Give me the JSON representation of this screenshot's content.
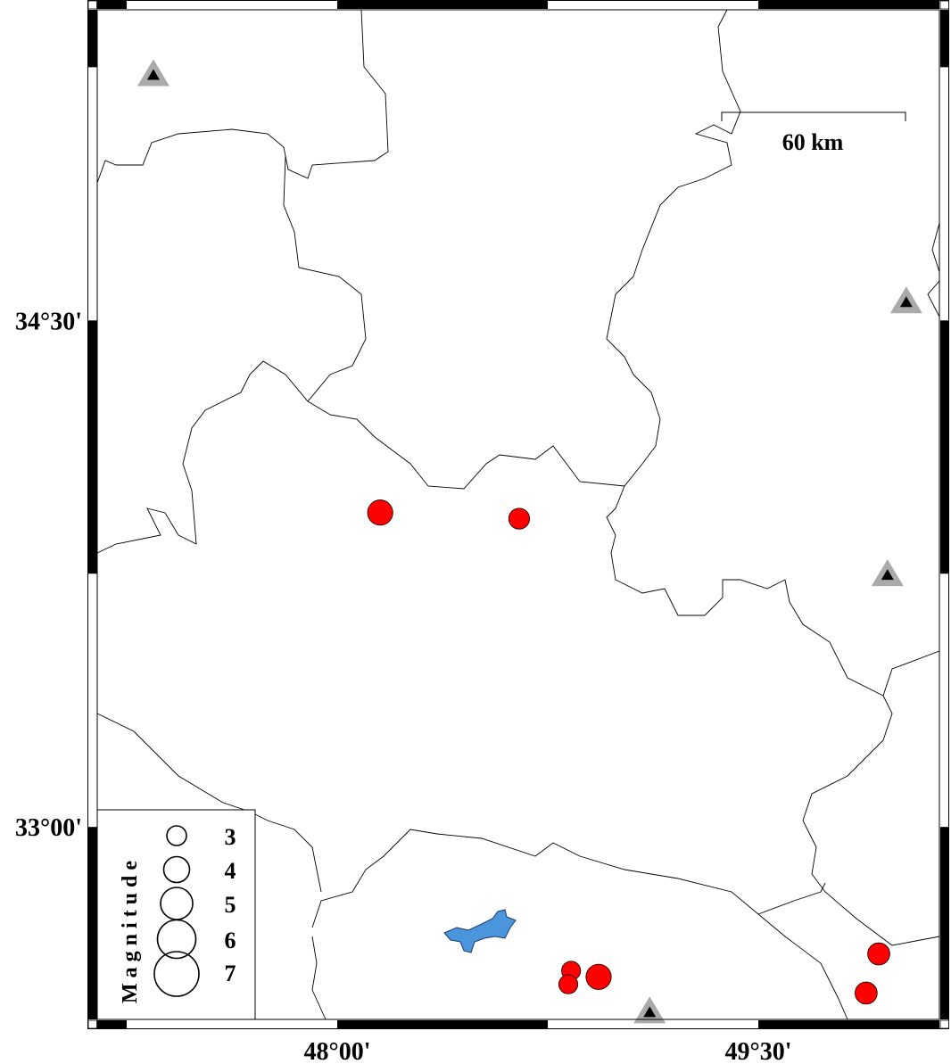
{
  "map": {
    "extent": {
      "lon": [
        47.145,
        50.145
      ],
      "lat": [
        32.43,
        35.42
      ]
    },
    "lon_ticks": [
      {
        "value": 48.0,
        "label": "48°00'"
      },
      {
        "value": 49.5,
        "label": "49°30'"
      }
    ],
    "lat_ticks": [
      {
        "value": 34.5,
        "label": "34°30'"
      },
      {
        "value": 33.0,
        "label": "33°00'"
      }
    ],
    "frame_interval_deg": 0.75,
    "scale_bar": {
      "label": "60 km",
      "length_km": 60
    },
    "colors": {
      "event": "#ff0000",
      "station_outer": "#aaaaaa",
      "station_inner": "#000000",
      "lake": "#4a95dc",
      "border": "#000000"
    }
  },
  "events": [
    {
      "lon": 48.153,
      "lat": 33.931,
      "mag": 3.9
    },
    {
      "lon": 48.648,
      "lat": 33.913,
      "mag": 3.2
    },
    {
      "lon": 48.833,
      "lat": 32.574,
      "mag": 2.9
    },
    {
      "lon": 48.823,
      "lat": 32.534,
      "mag": 2.9
    },
    {
      "lon": 48.931,
      "lat": 32.556,
      "mag": 3.9
    },
    {
      "lon": 49.929,
      "lat": 32.624,
      "mag": 3.4
    },
    {
      "lon": 49.884,
      "lat": 32.508,
      "mag": 3.4
    }
  ],
  "stations": [
    {
      "lon": 47.345,
      "lat": 35.226
    },
    {
      "lon": 50.027,
      "lat": 34.553
    },
    {
      "lon": 49.96,
      "lat": 33.745
    },
    {
      "lon": 49.113,
      "lat": 32.45
    }
  ],
  "legend": {
    "title": "Magnitude",
    "items": [
      {
        "mag": 3,
        "label": "3"
      },
      {
        "mag": 4,
        "label": "4"
      },
      {
        "mag": 5,
        "label": "5"
      },
      {
        "mag": 6,
        "label": "6"
      },
      {
        "mag": 7,
        "label": "7"
      }
    ]
  }
}
